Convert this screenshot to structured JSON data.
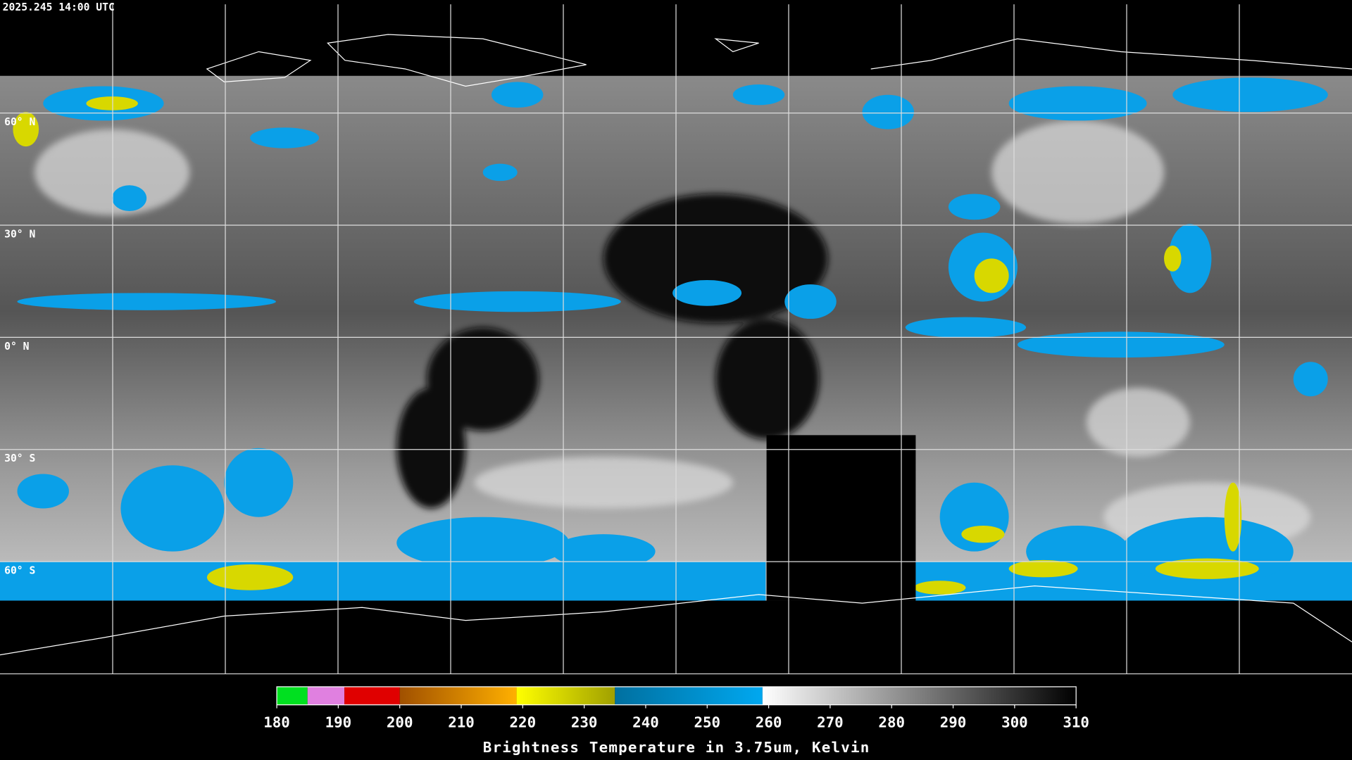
{
  "timestamp": "2025.245 14:00 UTC",
  "map": {
    "lat_range": [
      90,
      -90
    ],
    "latitudes": [
      {
        "value": 60,
        "label": "60° N"
      },
      {
        "value": 30,
        "label": "30° N"
      },
      {
        "value": 0,
        "label": "0° N"
      },
      {
        "value": -30,
        "label": "30° S"
      },
      {
        "value": -60,
        "label": "60° S"
      }
    ]
  },
  "colorbar": {
    "title": "Brightness Temperature in 3.75um, Kelvin",
    "range": [
      180,
      310
    ],
    "ticks": [
      180,
      190,
      200,
      210,
      220,
      230,
      240,
      250,
      260,
      270,
      280,
      290,
      300,
      310
    ],
    "segments": [
      {
        "from": 180,
        "to": 185,
        "colors": [
          "#00e020",
          "#00e020"
        ]
      },
      {
        "from": 185,
        "to": 191,
        "colors": [
          "#e080e0",
          "#e080e0"
        ]
      },
      {
        "from": 191,
        "to": 200,
        "colors": [
          "#e00000",
          "#e00000"
        ]
      },
      {
        "from": 200,
        "to": 219,
        "colors": [
          "#a05000",
          "#ffb000"
        ]
      },
      {
        "from": 219,
        "to": 235,
        "colors": [
          "#ffff00",
          "#a0a000"
        ]
      },
      {
        "from": 235,
        "to": 259,
        "colors": [
          "#0070a0",
          "#00a8f0"
        ]
      },
      {
        "from": 259,
        "to": 310,
        "colors": [
          "#ffffff",
          "#000000"
        ]
      }
    ]
  }
}
